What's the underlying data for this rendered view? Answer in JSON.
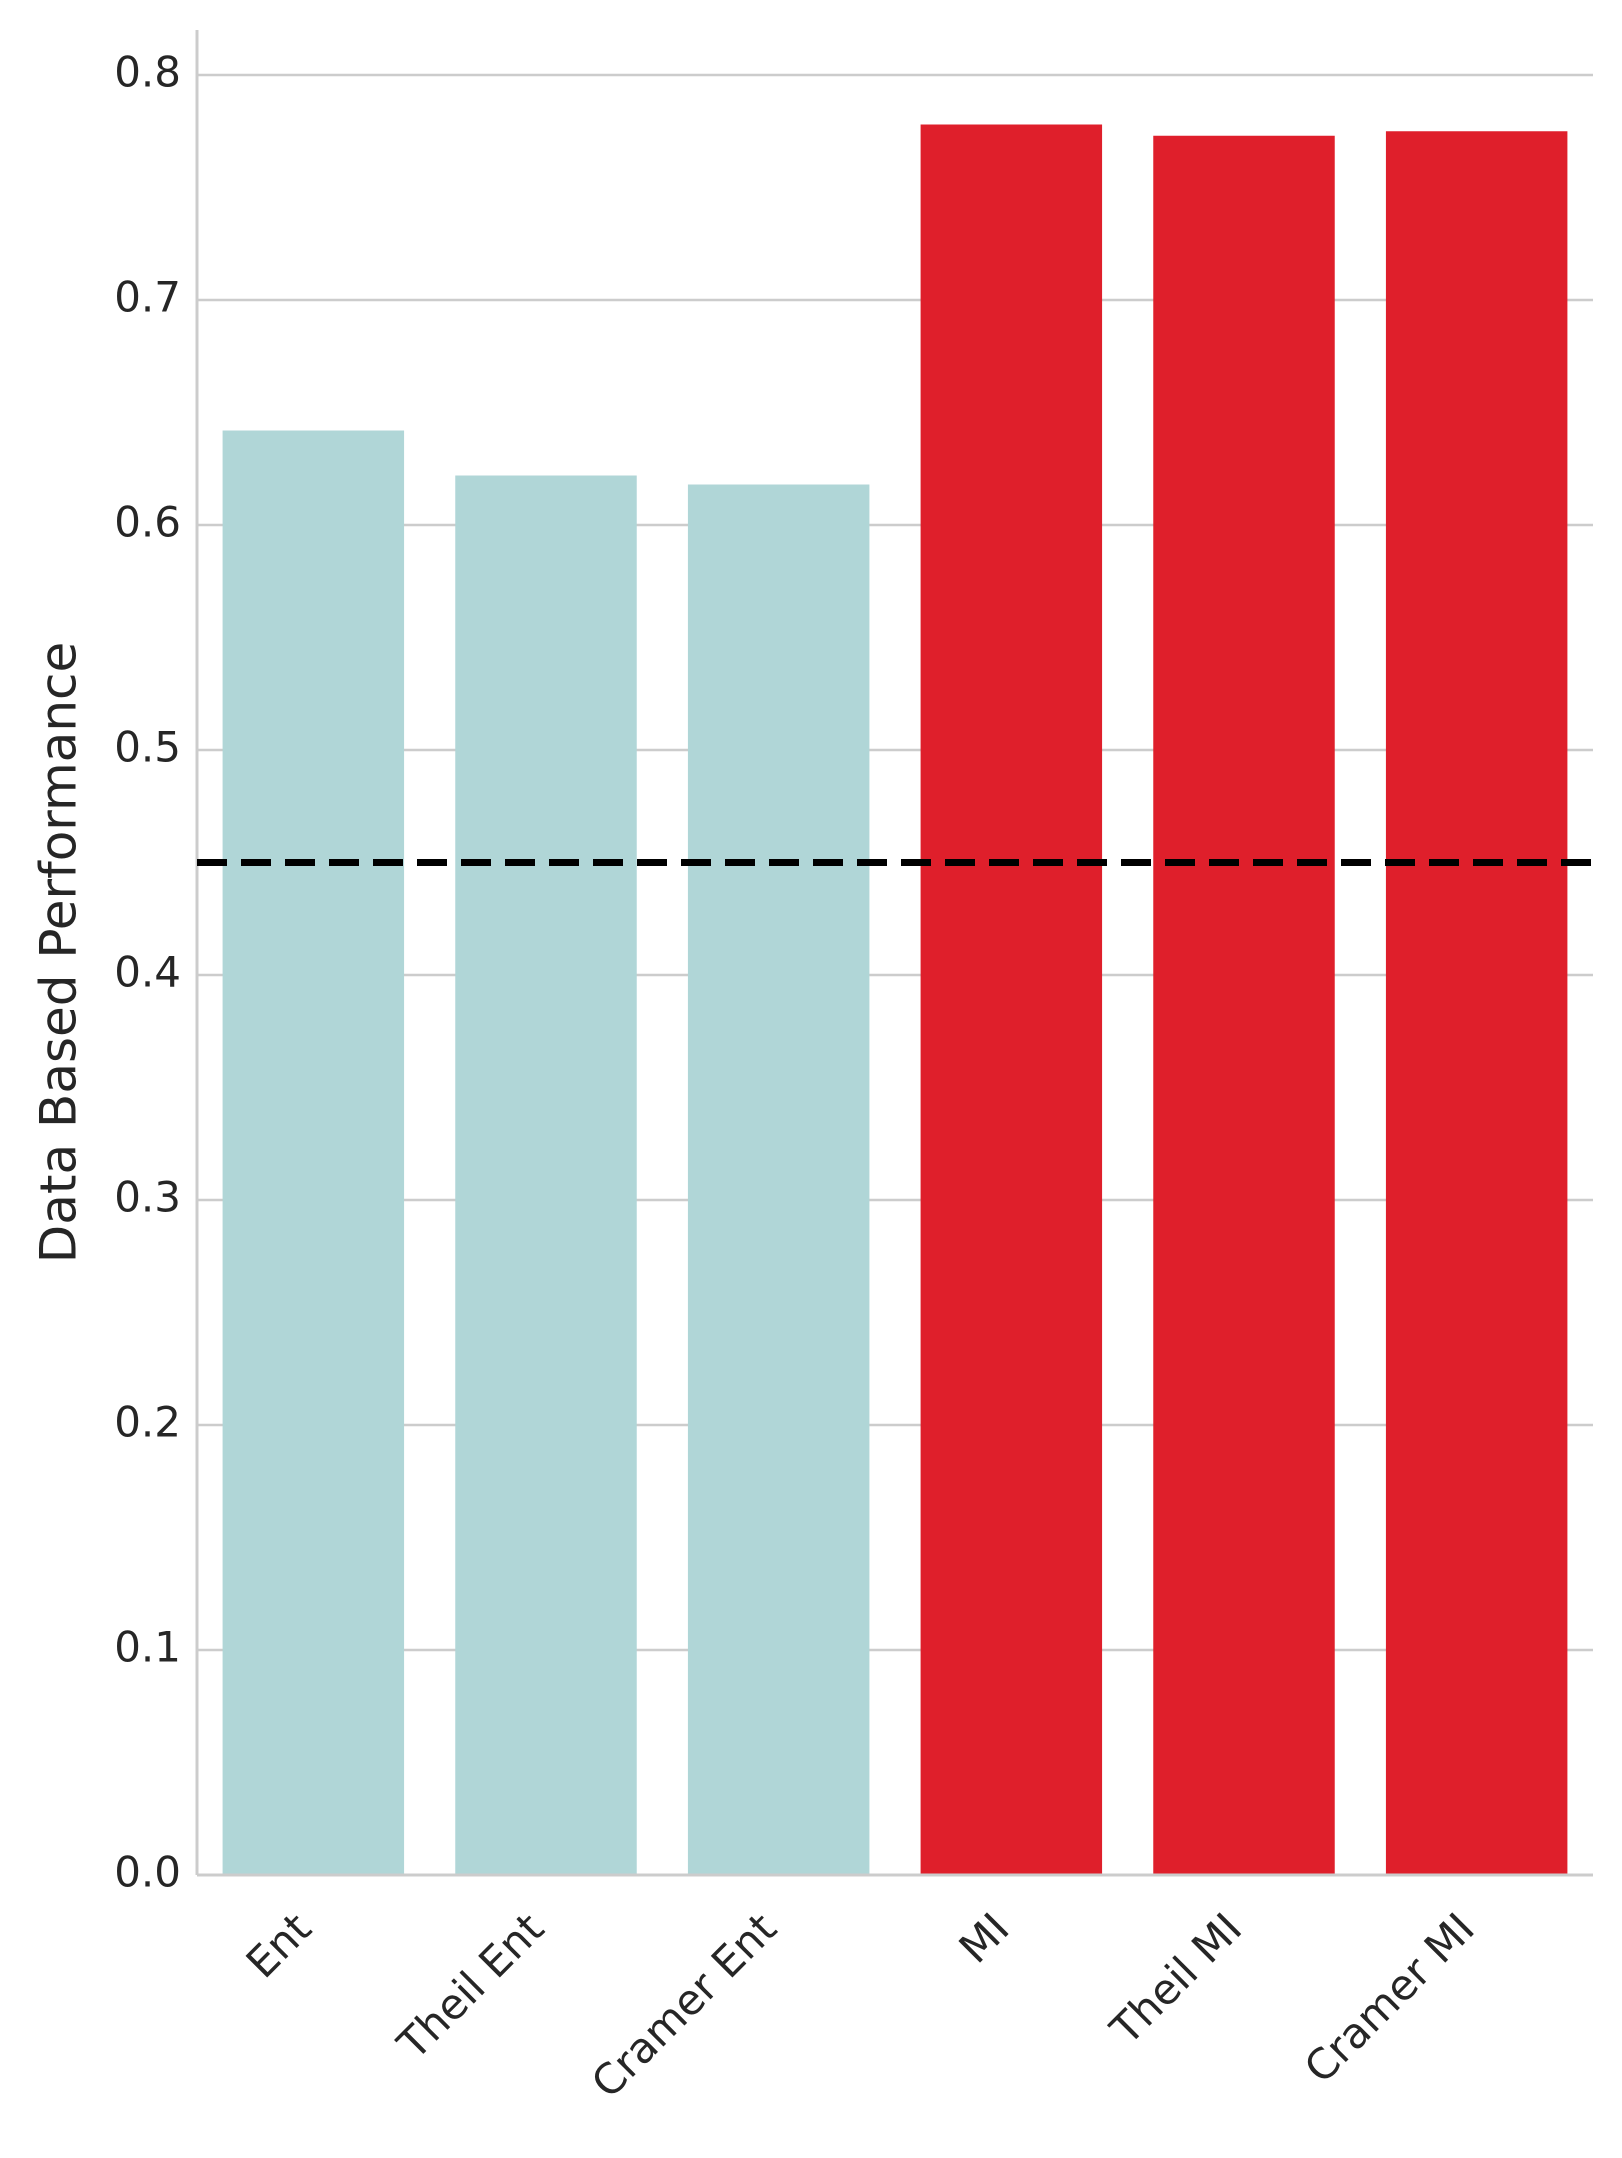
{
  "chart_data": {
    "type": "bar",
    "title": "",
    "xlabel": "",
    "ylabel": "Data Based Performance",
    "categories": [
      "Ent",
      "Theil Ent",
      "Cramer Ent",
      "MI",
      "Theil MI",
      "Cramer MI"
    ],
    "values": [
      0.642,
      0.622,
      0.618,
      0.778,
      0.773,
      0.775
    ],
    "bar_colors": [
      "#b0d6d7",
      "#b0d6d7",
      "#b0d6d7",
      "#df1f2b",
      "#df1f2b",
      "#df1f2b"
    ],
    "ylim": [
      0.0,
      0.82
    ],
    "yticks": [
      "0.0",
      "0.1",
      "0.2",
      "0.3",
      "0.4",
      "0.5",
      "0.6",
      "0.7",
      "0.8"
    ],
    "reference_line": {
      "value": 0.45,
      "style": "dashed",
      "color": "#000000"
    },
    "grid": "horizontal",
    "grid_color": "#cccccc",
    "axis_color": "#cccccc"
  }
}
